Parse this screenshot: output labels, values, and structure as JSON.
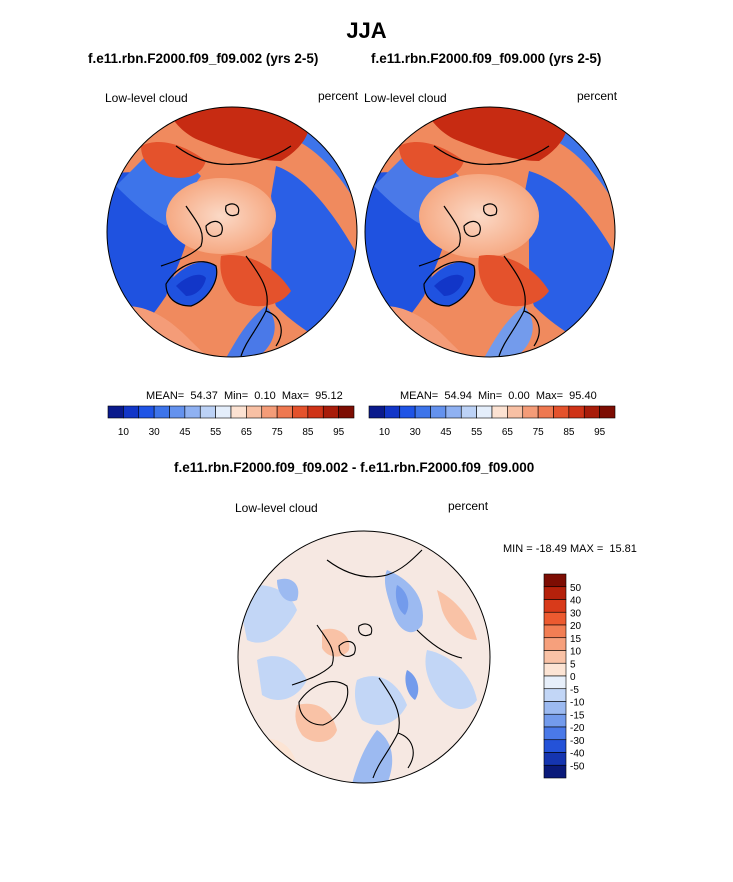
{
  "title": "JJA",
  "panels": [
    {
      "case_title": "f.e11.rbn.F2000.f09_f09.002 (yrs 2-5)",
      "left_label": "Low-level cloud",
      "right_label": "percent",
      "stats": {
        "mean": "54.37",
        "min": "0.10",
        "max": "95.12"
      }
    },
    {
      "case_title": "f.e11.rbn.F2000.f09_f09.000 (yrs 2-5)",
      "left_label": "Low-level cloud",
      "right_label": "percent",
      "stats": {
        "mean": "54.94",
        "min": "0.00",
        "max": "95.40"
      }
    }
  ],
  "stat_labels": {
    "mean": "MEAN=",
    "min": "Min=",
    "max": "Max="
  },
  "abs_colorbar": {
    "labels": [
      "10",
      "30",
      "45",
      "55",
      "65",
      "75",
      "85",
      "95"
    ],
    "colors": [
      "#0a1a8c",
      "#1236c8",
      "#1f54e6",
      "#3d74ea",
      "#6492ee",
      "#8fb1f2",
      "#bcd2f6",
      "#e4eefb",
      "#fce2d2",
      "#f8c0a4",
      "#f49c78",
      "#ef7850",
      "#e4522c",
      "#cf3317",
      "#a81c0a",
      "#7d0d03"
    ]
  },
  "diff_panel": {
    "title": "f.e11.rbn.F2000.f09_f09.002 - f.e11.rbn.F2000.f09_f09.000",
    "left_label": "Low-level cloud",
    "right_label": "percent",
    "minmax": "MIN = -18.49 MAX =  15.81"
  },
  "diff_colorbar": {
    "labels": [
      "50",
      "40",
      "30",
      "20",
      "15",
      "10",
      "5",
      "0",
      "-5",
      "-10",
      "-15",
      "-20",
      "-30",
      "-40",
      "-50"
    ],
    "colors": [
      "#7d0d03",
      "#b5210b",
      "#d83a1a",
      "#ec5a30",
      "#f27e54",
      "#f6a07c",
      "#f9c2a6",
      "#fce4d4",
      "#e7effa",
      "#c2d6f6",
      "#9cbaf1",
      "#739bec",
      "#4a79e8",
      "#2452d8",
      "#1535b0",
      "#0a1a7a"
    ]
  }
}
